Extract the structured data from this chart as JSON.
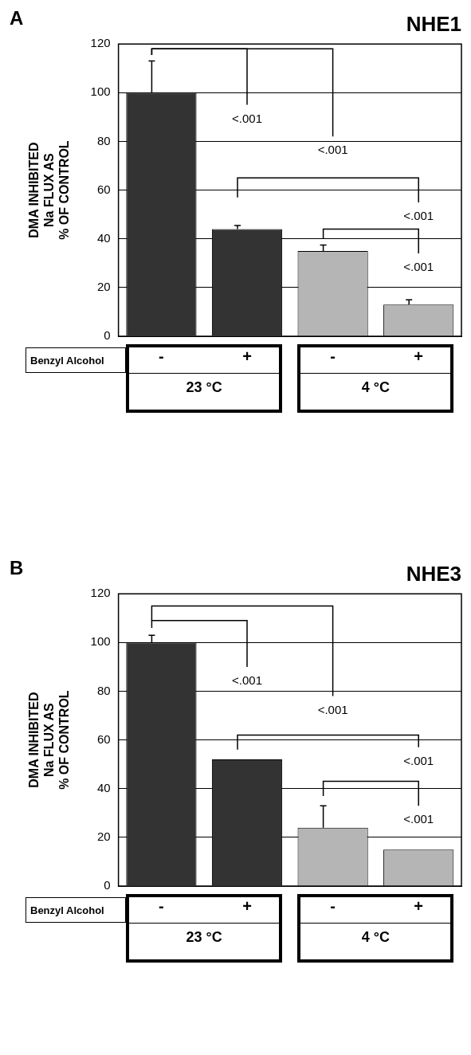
{
  "chart_data": [
    {
      "type": "bar",
      "title": "NHE1",
      "ylabel": "DMA INHIBITED\nNa FLUX AS\n% OF CONTROL",
      "xlabel": "Benzyl Alcohol",
      "categories": [
        "-",
        "+",
        "-",
        "+"
      ],
      "values": [
        100,
        44,
        35,
        13
      ],
      "colors": [
        "#333333",
        "#333333",
        "#b5b5b5",
        "#b5b5b5"
      ],
      "errors": [
        [
          100,
          113
        ],
        [
          44,
          45.5
        ],
        [
          35,
          37.5
        ],
        [
          13,
          15
        ]
      ],
      "ylim": [
        0,
        120
      ],
      "yticks": [
        0,
        20,
        40,
        60,
        80,
        100,
        120
      ],
      "grid": "y",
      "annotations": [
        "A",
        "<.001",
        "<.001",
        "<.001",
        "<.001",
        "23 °C",
        "4 °C"
      ]
    },
    {
      "type": "bar",
      "title": "NHE3",
      "ylabel": "DMA INHIBITED\nNa FLUX AS\n% OF CONTROL",
      "xlabel": "Benzyl Alcohol",
      "categories": [
        "-",
        "+",
        "-",
        "+"
      ],
      "values": [
        100,
        52,
        24,
        15
      ],
      "colors": [
        "#333333",
        "#333333",
        "#b5b5b5",
        "#b5b5b5"
      ],
      "errors": [
        [
          100,
          103
        ],
        null,
        [
          24,
          33
        ],
        null
      ],
      "ylim": [
        0,
        120
      ],
      "yticks": [
        0,
        20,
        40,
        60,
        80,
        100,
        120
      ],
      "grid": "y",
      "annotations": [
        "B",
        "<.001",
        "<.001",
        "<.001",
        "<.001",
        "23 °C",
        "4 °C"
      ]
    }
  ]
}
